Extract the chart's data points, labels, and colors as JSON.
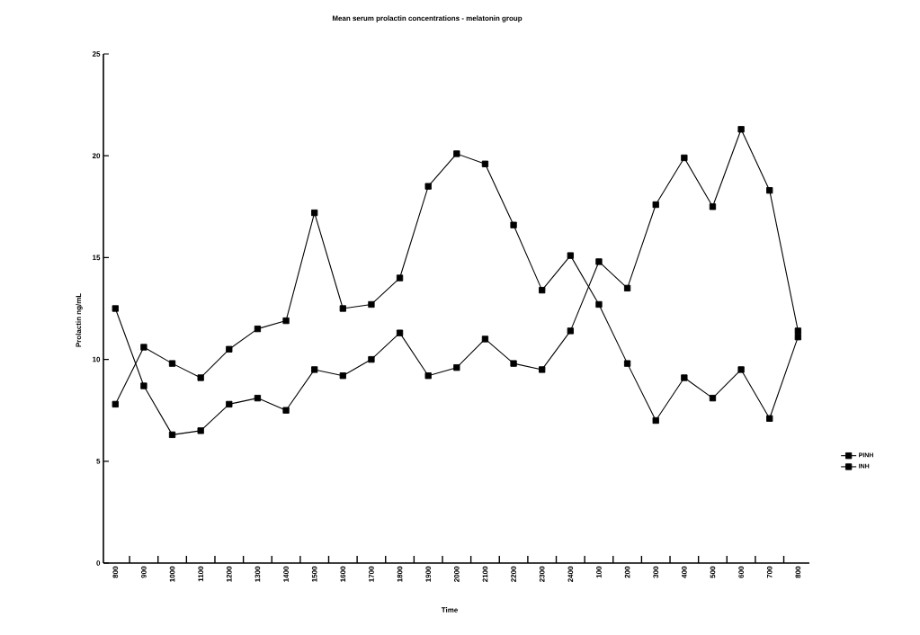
{
  "chart_data": {
    "type": "line",
    "title": "Mean serum prolactin concentrations - melatonin group",
    "xlabel": "Time",
    "ylabel": "Prolactin ng/mL",
    "categories": [
      "800",
      "900",
      "1000",
      "1100",
      "1200",
      "1300",
      "1400",
      "1500",
      "1600",
      "1700",
      "1800",
      "1900",
      "2000",
      "2100",
      "2200",
      "2300",
      "2400",
      "100",
      "200",
      "300",
      "400",
      "500",
      "600",
      "700",
      "800"
    ],
    "series": [
      {
        "name": "PINH",
        "color": "#000000",
        "values": [
          12.5,
          8.7,
          6.3,
          6.5,
          7.8,
          8.1,
          7.5,
          9.5,
          9.2,
          10.0,
          11.3,
          9.2,
          9.6,
          11.0,
          9.8,
          9.5,
          11.4,
          14.8,
          13.5,
          17.6,
          19.9,
          17.5,
          21.3,
          18.3,
          11.4
        ]
      },
      {
        "name": "INH",
        "color": "#000000",
        "values": [
          7.8,
          10.6,
          9.8,
          9.1,
          10.5,
          11.5,
          11.9,
          17.2,
          12.5,
          12.7,
          14.0,
          18.5,
          20.1,
          19.6,
          16.6,
          13.4,
          15.1,
          12.7,
          9.8,
          7.0,
          9.1,
          8.1,
          9.5,
          7.1,
          11.1
        ]
      }
    ],
    "ylim": [
      0,
      25
    ],
    "yticks": [
      0,
      5,
      10,
      15,
      20,
      25
    ],
    "grid": false,
    "legend": "right",
    "marker": "square",
    "line_style": "solid"
  }
}
